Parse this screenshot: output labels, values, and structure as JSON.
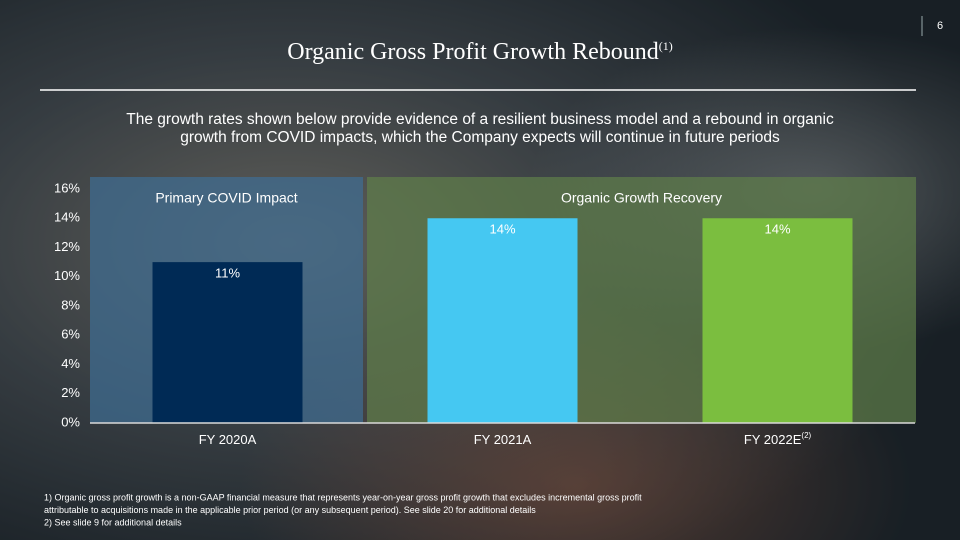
{
  "page_number": "6",
  "chart_data": {
    "type": "bar",
    "title": "Organic Gross Profit Growth Rebound",
    "title_note": "(1)",
    "subtitle_lines": [
      "The growth rates shown below provide evidence of a resilient business model and a rebound in organic",
      "growth from COVID impacts, which the Company expects will continue in future periods"
    ],
    "categories": [
      "FY 2020A",
      "FY 2021A",
      "FY 2022E"
    ],
    "category_notes": [
      null,
      null,
      "(2)"
    ],
    "values": [
      11,
      14,
      14
    ],
    "value_labels": [
      "11%",
      "14%",
      "14%"
    ],
    "colors": [
      "#002a55",
      "#45c8f2",
      "#7bbe3f"
    ],
    "ylim": [
      0,
      16
    ],
    "yticks": [
      {
        "value": 0,
        "label": "0%"
      },
      {
        "value": 2,
        "label": "2%"
      },
      {
        "value": 4,
        "label": "4%"
      },
      {
        "value": 6,
        "label": "6%"
      },
      {
        "value": 8,
        "label": "8%"
      },
      {
        "value": 10,
        "label": "10%"
      },
      {
        "value": 12,
        "label": "12%"
      },
      {
        "value": 14,
        "label": "14%"
      },
      {
        "value": 16,
        "label": "16%"
      }
    ],
    "grid": false,
    "regions": [
      {
        "label": "Primary COVID Impact",
        "color": "#3f6d94"
      },
      {
        "label": "Organic Growth Recovery",
        "color": "#5f7f4a"
      }
    ],
    "footnotes": [
      "1) Organic gross profit growth is a non-GAAP financial measure that represents year-on-year gross profit growth that excludes incremental gross profit",
      "attributable to acquisitions made in the applicable prior period (or any subsequent period). See slide 20 for additional details",
      "2) See slide 9 for additional details"
    ]
  }
}
